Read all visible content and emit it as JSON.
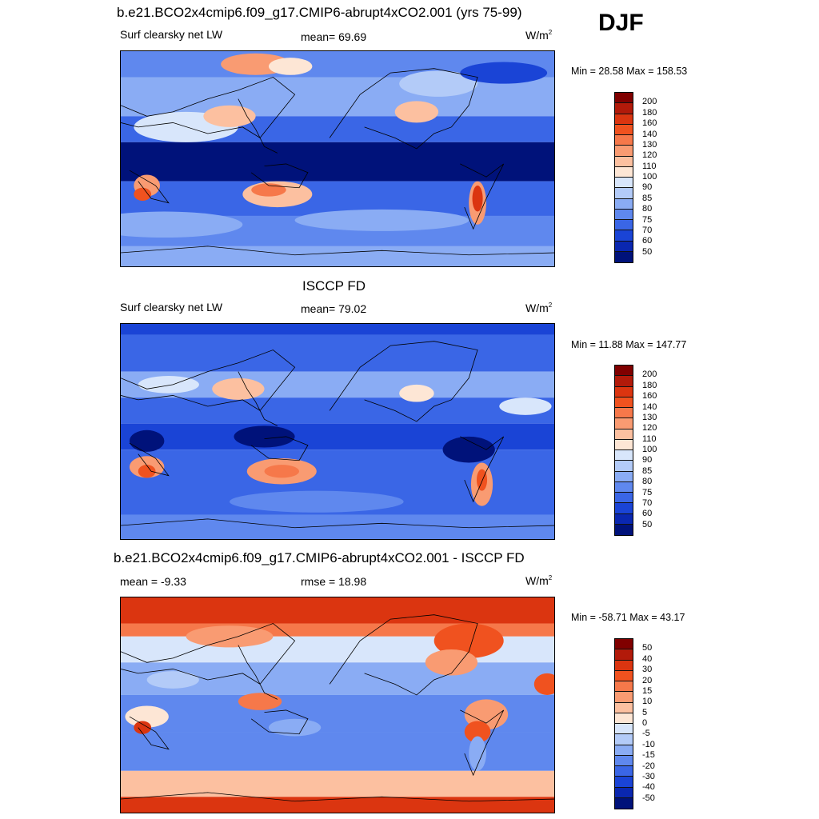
{
  "season": "DJF",
  "units_text": "W/m",
  "units_exp": "2",
  "panels": [
    {
      "id": "model",
      "title": "b.e21.BCO2x4cmip6.f09_g17.CMIP6-abrupt4xCO2.001 (yrs 75-99)",
      "left_label": "Surf clearsky net LW",
      "center_label": "mean=  69.69",
      "minmax": "Min =  28.58 Max = 158.53",
      "scale": "abs"
    },
    {
      "id": "obs",
      "title": "ISCCP FD",
      "left_label": "Surf clearsky net LW",
      "center_label": "mean=  79.02",
      "minmax": "Min =  11.88 Max = 147.77",
      "scale": "abs"
    },
    {
      "id": "diff",
      "title": "b.e21.BCO2x4cmip6.f09_g17.CMIP6-abrupt4xCO2.001 - ISCCP FD",
      "left_label": "mean =  -9.33",
      "center_label": "rmse =  18.98",
      "minmax": "Min = -58.71 Max =  43.17",
      "scale": "diff"
    }
  ],
  "colorbars": {
    "abs": {
      "labels": [
        "200",
        "180",
        "160",
        "140",
        "130",
        "120",
        "110",
        "100",
        "90",
        "85",
        "80",
        "75",
        "70",
        "60",
        "50"
      ],
      "colors": [
        "#800000",
        "#b21a0a",
        "#db3510",
        "#f0521f",
        "#f6784a",
        "#f99b72",
        "#fcc0a0",
        "#fde6d5",
        "#d8e6fb",
        "#b3cbf8",
        "#8aacf4",
        "#5f88ee",
        "#3a66e6",
        "#1a44d6",
        "#0a27b0",
        "#00127a"
      ]
    },
    "diff": {
      "labels": [
        "50",
        "40",
        "30",
        "20",
        "15",
        "10",
        "5",
        "0",
        "-5",
        "-10",
        "-15",
        "-20",
        "-30",
        "-40",
        "-50"
      ],
      "colors": [
        "#800000",
        "#b21a0a",
        "#db3510",
        "#f0521f",
        "#f6784a",
        "#f99b72",
        "#fcc0a0",
        "#fde6d5",
        "#d8e6fb",
        "#b3cbf8",
        "#8aacf4",
        "#5f88ee",
        "#3a66e6",
        "#1a44d6",
        "#0a27b0",
        "#00127a"
      ]
    }
  }
}
